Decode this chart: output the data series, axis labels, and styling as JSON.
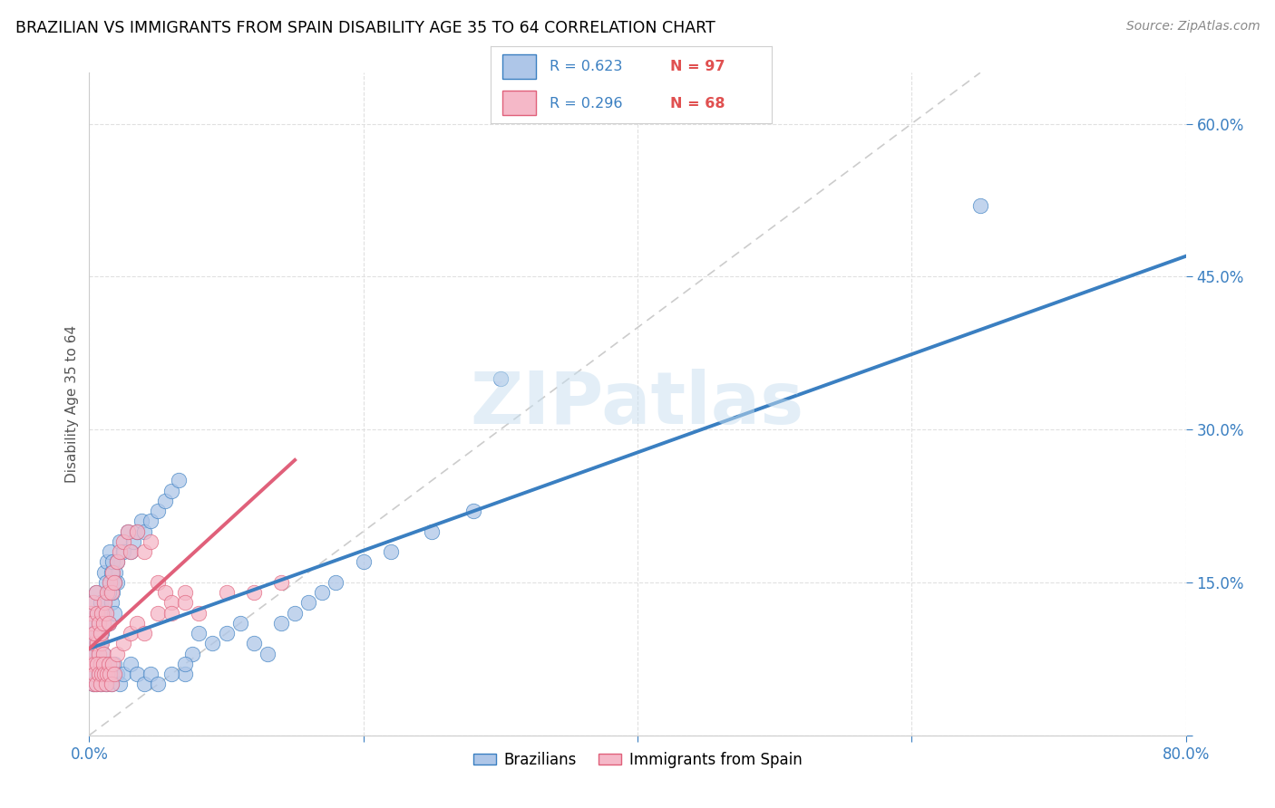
{
  "title": "BRAZILIAN VS IMMIGRANTS FROM SPAIN DISABILITY AGE 35 TO 64 CORRELATION CHART",
  "source": "Source: ZipAtlas.com",
  "ylabel": "Disability Age 35 to 64",
  "xlim": [
    0,
    0.8
  ],
  "ylim": [
    0,
    0.65
  ],
  "brazil_R": 0.623,
  "brazil_N": 97,
  "spain_R": 0.296,
  "spain_N": 68,
  "brazil_color": "#aec6e8",
  "spain_color": "#f5b8c8",
  "brazil_line_color": "#3a7fc1",
  "spain_line_color": "#e0607a",
  "diagonal_color": "#cccccc",
  "watermark": "ZIPatlas",
  "background_color": "#ffffff",
  "brazil_scatter_x": [
    0.001,
    0.002,
    0.003,
    0.004,
    0.005,
    0.006,
    0.007,
    0.008,
    0.009,
    0.01,
    0.001,
    0.002,
    0.003,
    0.004,
    0.005,
    0.006,
    0.007,
    0.008,
    0.009,
    0.01,
    0.011,
    0.012,
    0.013,
    0.014,
    0.015,
    0.016,
    0.017,
    0.018,
    0.019,
    0.02,
    0.011,
    0.012,
    0.013,
    0.014,
    0.015,
    0.016,
    0.017,
    0.018,
    0.02,
    0.022,
    0.025,
    0.028,
    0.03,
    0.032,
    0.035,
    0.038,
    0.04,
    0.045,
    0.05,
    0.055,
    0.06,
    0.065,
    0.07,
    0.075,
    0.08,
    0.09,
    0.1,
    0.11,
    0.12,
    0.13,
    0.14,
    0.15,
    0.16,
    0.17,
    0.18,
    0.2,
    0.22,
    0.25,
    0.28,
    0.3,
    0.003,
    0.004,
    0.005,
    0.006,
    0.007,
    0.008,
    0.009,
    0.01,
    0.011,
    0.012,
    0.013,
    0.014,
    0.015,
    0.016,
    0.017,
    0.018,
    0.02,
    0.022,
    0.025,
    0.03,
    0.035,
    0.04,
    0.045,
    0.05,
    0.06,
    0.07,
    0.65
  ],
  "brazil_scatter_y": [
    0.08,
    0.09,
    0.1,
    0.08,
    0.09,
    0.1,
    0.08,
    0.09,
    0.07,
    0.08,
    0.12,
    0.11,
    0.13,
    0.1,
    0.14,
    0.12,
    0.11,
    0.13,
    0.1,
    0.12,
    0.13,
    0.12,
    0.14,
    0.11,
    0.15,
    0.13,
    0.14,
    0.12,
    0.16,
    0.15,
    0.16,
    0.15,
    0.17,
    0.14,
    0.18,
    0.16,
    0.17,
    0.15,
    0.17,
    0.19,
    0.18,
    0.2,
    0.18,
    0.19,
    0.2,
    0.21,
    0.2,
    0.21,
    0.22,
    0.23,
    0.24,
    0.25,
    0.06,
    0.08,
    0.1,
    0.09,
    0.1,
    0.11,
    0.09,
    0.08,
    0.11,
    0.12,
    0.13,
    0.14,
    0.15,
    0.17,
    0.18,
    0.2,
    0.22,
    0.35,
    0.05,
    0.06,
    0.05,
    0.07,
    0.06,
    0.05,
    0.06,
    0.07,
    0.06,
    0.05,
    0.06,
    0.07,
    0.06,
    0.05,
    0.06,
    0.07,
    0.06,
    0.05,
    0.06,
    0.07,
    0.06,
    0.05,
    0.06,
    0.05,
    0.06,
    0.07,
    0.52
  ],
  "spain_scatter_x": [
    0.001,
    0.002,
    0.003,
    0.004,
    0.005,
    0.006,
    0.007,
    0.008,
    0.009,
    0.01,
    0.001,
    0.002,
    0.003,
    0.004,
    0.005,
    0.006,
    0.007,
    0.008,
    0.009,
    0.01,
    0.011,
    0.012,
    0.013,
    0.014,
    0.015,
    0.016,
    0.017,
    0.018,
    0.02,
    0.022,
    0.025,
    0.028,
    0.03,
    0.035,
    0.04,
    0.045,
    0.05,
    0.055,
    0.06,
    0.07,
    0.003,
    0.004,
    0.005,
    0.006,
    0.007,
    0.008,
    0.009,
    0.01,
    0.011,
    0.012,
    0.013,
    0.014,
    0.015,
    0.016,
    0.017,
    0.018,
    0.02,
    0.025,
    0.03,
    0.035,
    0.04,
    0.05,
    0.06,
    0.07,
    0.08,
    0.1,
    0.12,
    0.14
  ],
  "spain_scatter_y": [
    0.07,
    0.08,
    0.09,
    0.07,
    0.1,
    0.09,
    0.08,
    0.07,
    0.09,
    0.08,
    0.12,
    0.11,
    0.13,
    0.1,
    0.14,
    0.12,
    0.11,
    0.1,
    0.12,
    0.11,
    0.13,
    0.12,
    0.14,
    0.11,
    0.15,
    0.14,
    0.16,
    0.15,
    0.17,
    0.18,
    0.19,
    0.2,
    0.18,
    0.2,
    0.18,
    0.19,
    0.15,
    0.14,
    0.13,
    0.14,
    0.05,
    0.06,
    0.05,
    0.07,
    0.06,
    0.05,
    0.06,
    0.07,
    0.06,
    0.05,
    0.06,
    0.07,
    0.06,
    0.05,
    0.07,
    0.06,
    0.08,
    0.09,
    0.1,
    0.11,
    0.1,
    0.12,
    0.12,
    0.13,
    0.12,
    0.14,
    0.14,
    0.15
  ],
  "brazil_line_x": [
    0.0,
    0.8
  ],
  "brazil_line_y": [
    0.085,
    0.47
  ],
  "spain_line_x": [
    0.0,
    0.15
  ],
  "spain_line_y": [
    0.085,
    0.27
  ]
}
